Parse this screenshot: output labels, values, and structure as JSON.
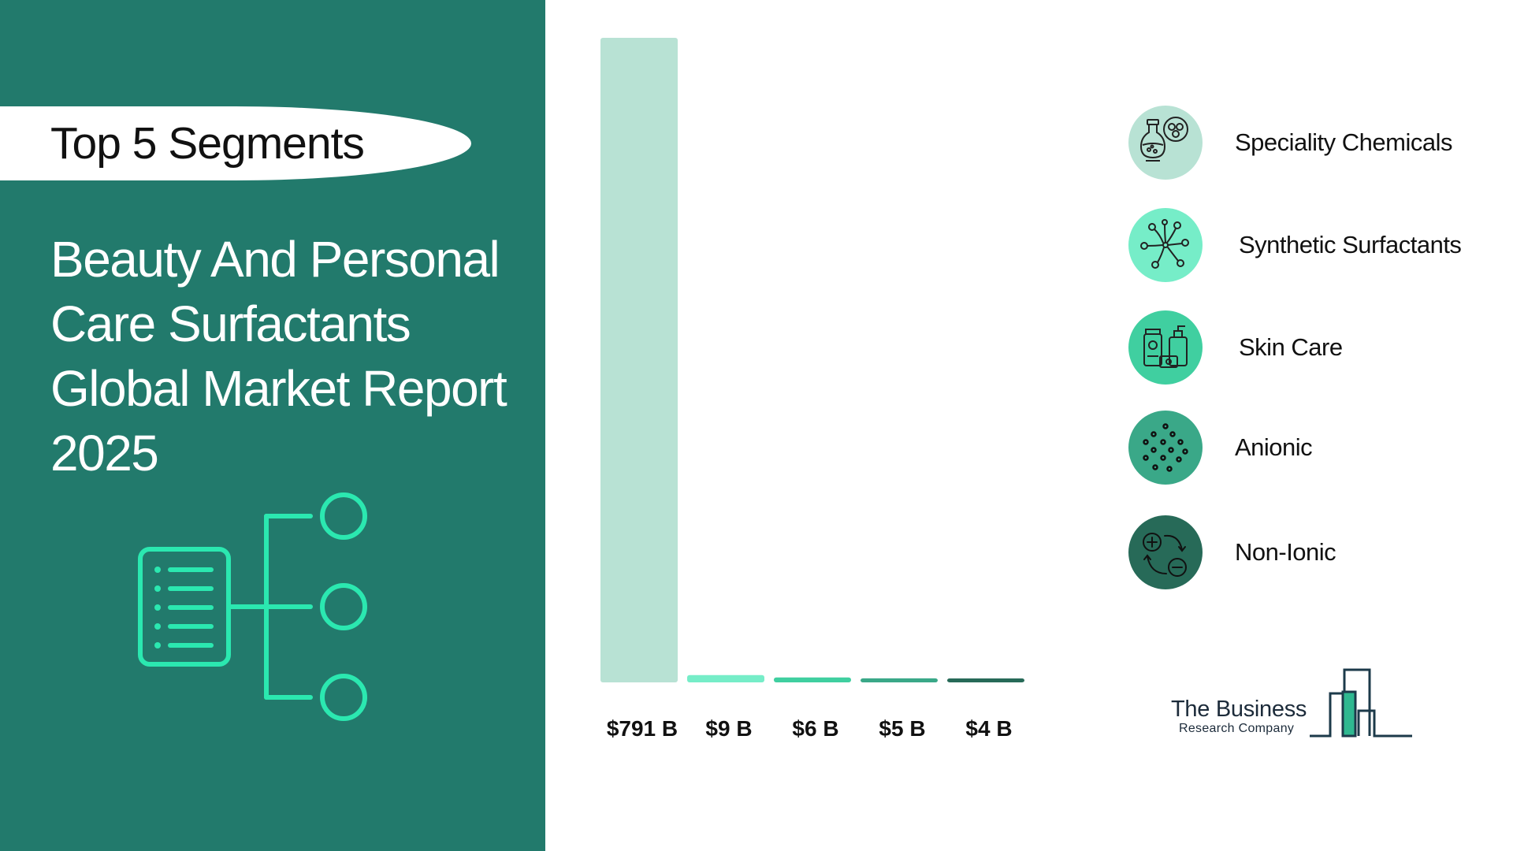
{
  "header": {
    "pill_text": "Top 5 Segments",
    "report_title": "Beauty And Personal Care Surfactants Global Market Report 2025"
  },
  "colors": {
    "panel": "#227a6c",
    "series": [
      "#b8e2d4",
      "#76edc8",
      "#40cfa0",
      "#3aa888",
      "#276a58"
    ],
    "accent": "#2be8b0"
  },
  "chart_data": {
    "type": "bar",
    "categories": [
      "Speciality Chemicals",
      "Synthetic Surfactants",
      "Skin Care",
      "Anionic",
      "Non-Ionic"
    ],
    "values": [
      791,
      9,
      6,
      5,
      4
    ],
    "data_labels": [
      "$791 B",
      "$9 B",
      "$6 B",
      "$5 B",
      "$4 B"
    ],
    "unit": "B",
    "ylim": [
      0,
      791
    ],
    "grid": false,
    "legend": "right"
  },
  "legend": {
    "items": [
      {
        "label": "Speciality Chemicals",
        "icon": "flask-molecule-icon"
      },
      {
        "label": "Synthetic Surfactants",
        "icon": "surfactant-molecules-icon"
      },
      {
        "label": "Skin Care",
        "icon": "skincare-bottles-icon"
      },
      {
        "label": "Anionic",
        "icon": "dots-icon"
      },
      {
        "label": "Non-Ionic",
        "icon": "plus-minus-cycle-icon"
      }
    ]
  },
  "logo": {
    "line1": "The Business",
    "line2": "Research Company"
  }
}
